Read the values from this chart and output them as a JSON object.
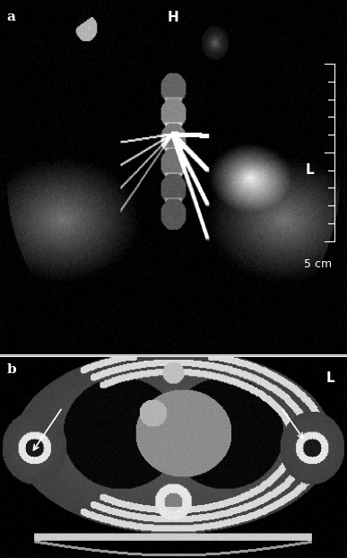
{
  "fig_width": 3.87,
  "fig_height": 6.22,
  "dpi": 100,
  "bg_color": "#ffffff",
  "panel_a_label": "a",
  "panel_b_label": "b",
  "panel_a_H_label": "H",
  "panel_a_L_label": "L",
  "panel_b_L_label": "L",
  "scale_bar_text": "5 cm",
  "label_color": "white",
  "label_fontsize": 11,
  "scale_fontsize": 9
}
